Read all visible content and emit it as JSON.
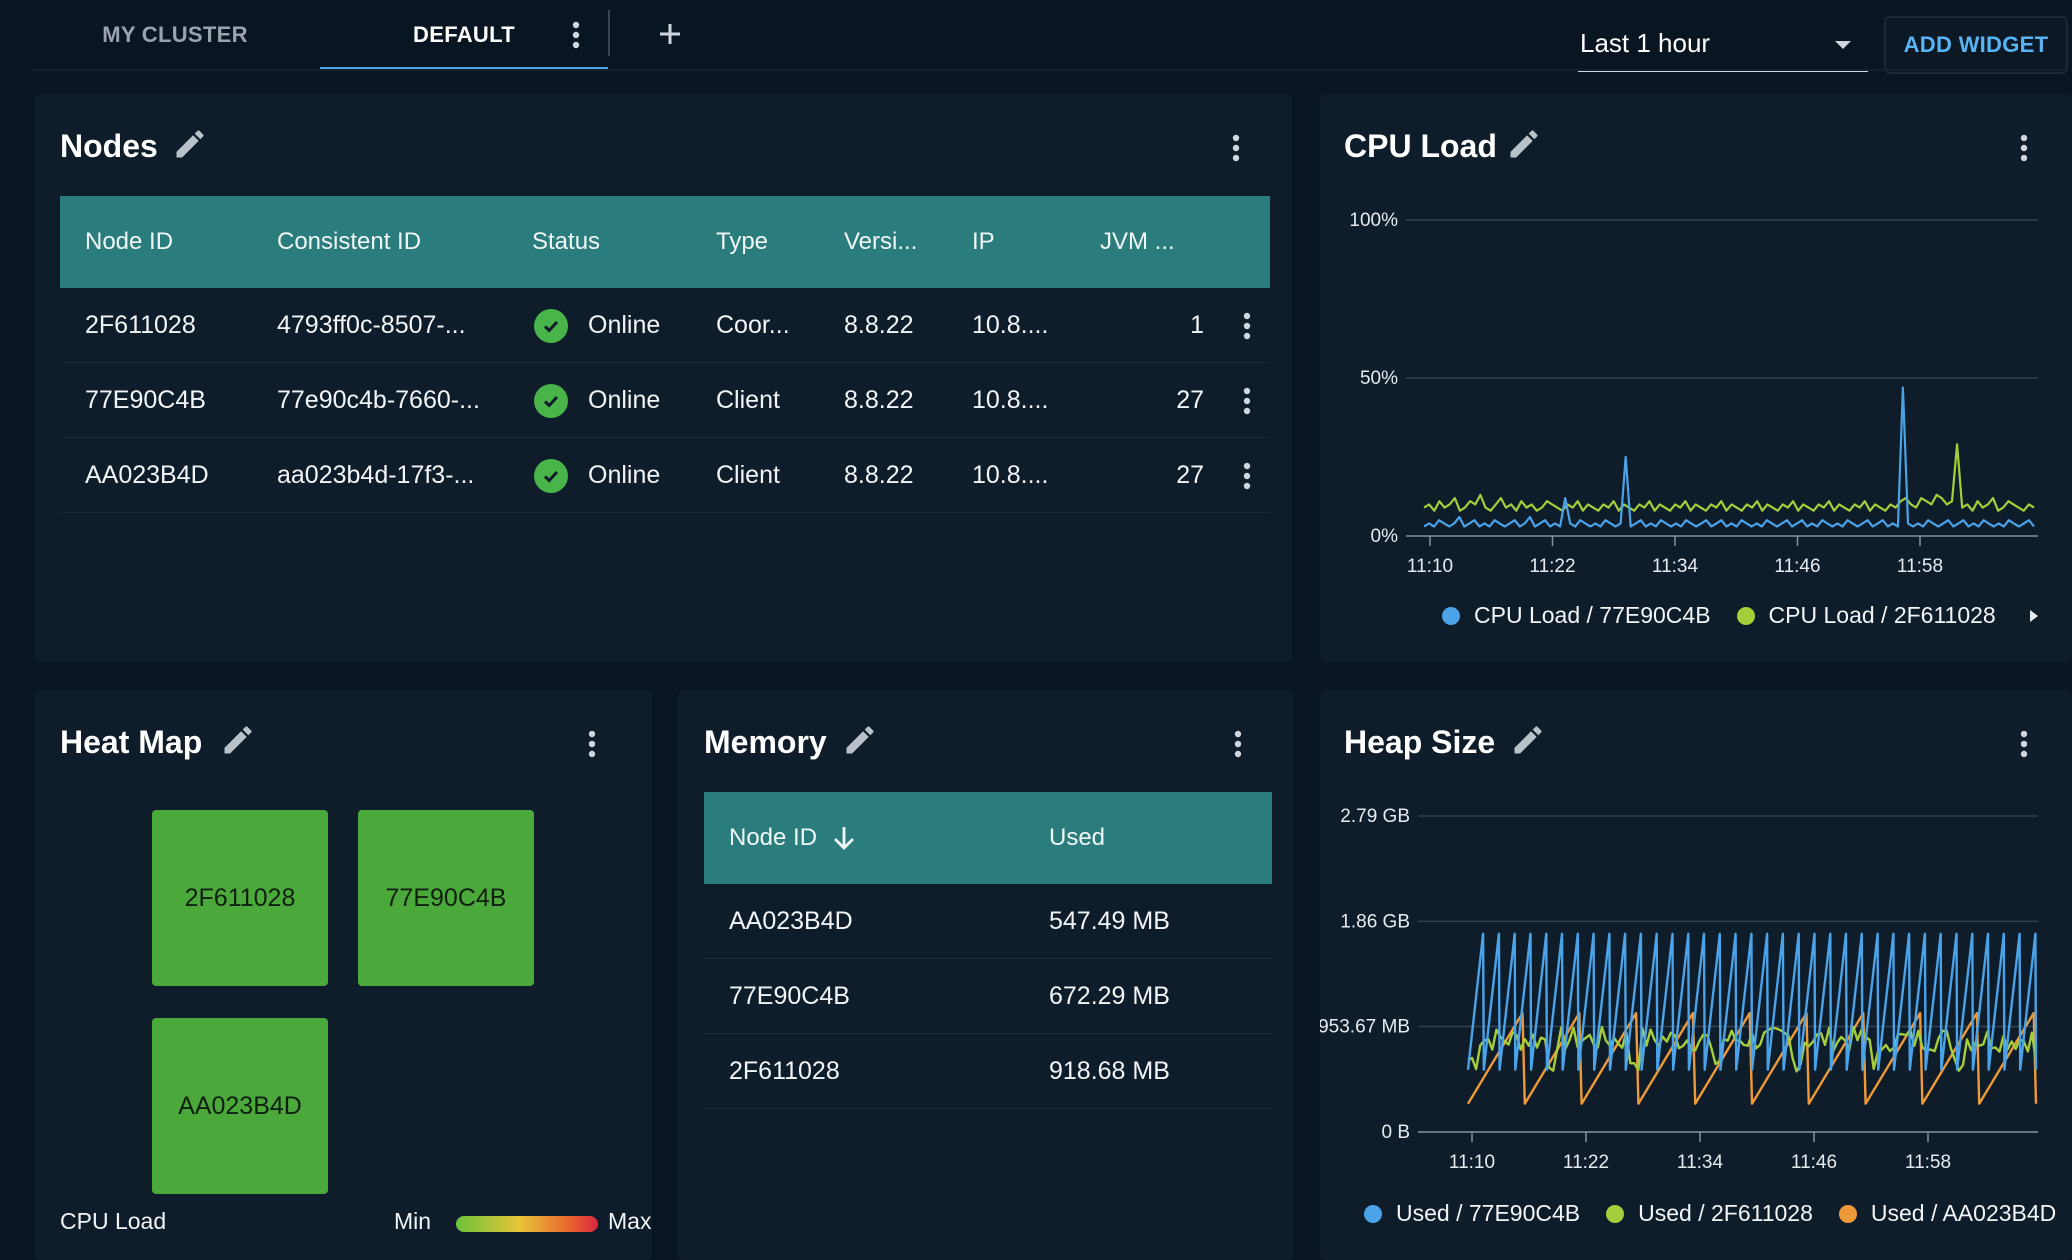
{
  "topbar": {
    "tabs": [
      {
        "label": "MY CLUSTER",
        "active": false
      },
      {
        "label": "DEFAULT",
        "active": true
      }
    ],
    "time_range": "Last 1 hour",
    "add_widget_label": "ADD WIDGET"
  },
  "nodes": {
    "title": "Nodes",
    "columns": [
      "Node ID",
      "Consistent ID",
      "Status",
      "Type",
      "Versi...",
      "IP",
      "JVM ..."
    ],
    "rows": [
      {
        "node_id": "2F611028",
        "consistent_id": "4793ff0c-8507-...",
        "status": "Online",
        "type": "Coor...",
        "version": "8.8.22",
        "ip": "10.8....",
        "jvm": "1"
      },
      {
        "node_id": "77E90C4B",
        "consistent_id": "77e90c4b-7660-...",
        "status": "Online",
        "type": "Client",
        "version": "8.8.22",
        "ip": "10.8....",
        "jvm": "27"
      },
      {
        "node_id": "AA023B4D",
        "consistent_id": "aa023b4d-17f3-...",
        "status": "Online",
        "type": "Client",
        "version": "8.8.22",
        "ip": "10.8....",
        "jvm": "27"
      }
    ]
  },
  "cpu": {
    "title": "CPU Load",
    "legend": [
      "CPU Load / 77E90C4B",
      "CPU Load / 2F611028"
    ]
  },
  "heatmap": {
    "title": "Heat Map",
    "cells": [
      "2F611028",
      "77E90C4B",
      "AA023B4D"
    ],
    "metric_label": "CPU Load",
    "min_label": "Min",
    "max_label": "Max"
  },
  "memory": {
    "title": "Memory",
    "columns": [
      "Node ID",
      "Used"
    ],
    "rows": [
      {
        "node_id": "AA023B4D",
        "used": "547.49 MB"
      },
      {
        "node_id": "77E90C4B",
        "used": "672.29 MB"
      },
      {
        "node_id": "2F611028",
        "used": "918.68 MB"
      }
    ]
  },
  "heap": {
    "title": "Heap Size",
    "legend": [
      "Used / 77E90C4B",
      "Used / 2F611028",
      "Used / AA023B4D"
    ]
  },
  "colors": {
    "blue": "#4aa3e8",
    "green": "#a4cf3a",
    "orange": "#ee9a3a",
    "teal_header": "#2b7d7d",
    "status_green": "#49b449"
  },
  "chart_data": [
    {
      "type": "line",
      "title": "CPU Load",
      "y_ticks": [
        "0%",
        "50%",
        "100%"
      ],
      "ylim": [
        0,
        100
      ],
      "x_ticks": [
        "11:10",
        "11:22",
        "11:34",
        "11:46",
        "11:58"
      ],
      "series": [
        {
          "name": "CPU Load / 77E90C4B",
          "color": "#4aa3e8",
          "values": [
            3,
            4,
            3,
            5,
            4,
            3,
            4,
            6,
            3,
            4,
            5,
            3,
            4,
            3,
            5,
            4,
            3,
            4,
            5,
            3,
            4,
            6,
            3,
            4,
            5,
            3,
            4,
            3,
            12,
            4,
            3,
            5,
            4,
            3,
            4,
            3,
            5,
            4,
            3,
            4,
            25,
            3,
            4,
            5,
            3,
            4,
            3,
            5,
            4,
            3,
            4,
            3,
            5,
            4,
            3,
            4,
            5,
            3,
            4,
            5,
            3,
            4,
            3,
            5,
            4,
            3,
            4,
            3,
            5,
            4,
            3,
            4,
            5,
            3,
            4,
            5,
            3,
            4,
            3,
            5,
            4,
            3,
            4,
            3,
            5,
            4,
            3,
            4,
            5,
            3,
            4,
            5,
            3,
            4,
            3,
            47,
            4,
            3,
            4,
            3,
            5,
            4,
            3,
            4,
            5,
            3,
            4,
            5,
            3,
            4,
            3,
            5,
            4,
            3,
            4,
            3,
            5,
            4,
            3,
            4,
            5,
            3
          ]
        },
        {
          "name": "CPU Load / 2F611028",
          "color": "#a4cf3a",
          "values": [
            9,
            10,
            8,
            11,
            9,
            10,
            12,
            8,
            9,
            11,
            10,
            13,
            9,
            8,
            10,
            12,
            9,
            10,
            8,
            11,
            9,
            10,
            8,
            9,
            11,
            10,
            9,
            8,
            10,
            9,
            11,
            8,
            10,
            9,
            8,
            10,
            9,
            11,
            8,
            10,
            9,
            8,
            10,
            9,
            11,
            8,
            10,
            9,
            8,
            10,
            9,
            11,
            8,
            10,
            9,
            8,
            10,
            9,
            11,
            8,
            10,
            9,
            8,
            10,
            9,
            11,
            8,
            10,
            9,
            8,
            10,
            9,
            11,
            8,
            10,
            9,
            8,
            10,
            9,
            11,
            8,
            10,
            9,
            8,
            10,
            9,
            11,
            8,
            10,
            9,
            8,
            10,
            9,
            11,
            12,
            10,
            9,
            12,
            11,
            10,
            13,
            12,
            10,
            11,
            29,
            9,
            10,
            8,
            11,
            9,
            10,
            12,
            8,
            9,
            11,
            10,
            9,
            8,
            10,
            9
          ]
        }
      ]
    },
    {
      "type": "line",
      "title": "Heap Size",
      "y_ticks": [
        "0 B",
        "953.67 MB",
        "1.86 GB",
        "2.79 GB"
      ],
      "ylim_gb": [
        0,
        2.79
      ],
      "x_ticks": [
        "11:10",
        "11:22",
        "11:34",
        "11:46",
        "11:58"
      ],
      "series": [
        {
          "name": "Used / 77E90C4B",
          "color": "#4aa3e8",
          "pattern": "sawtooth",
          "min_gb": 0.55,
          "max_gb": 1.75,
          "cycles": 36
        },
        {
          "name": "Used / 2F611028",
          "color": "#a4cf3a",
          "pattern": "noisy",
          "level_gb": 0.82
        },
        {
          "name": "Used / AA023B4D",
          "color": "#ee9a3a",
          "pattern": "sawtooth",
          "min_gb": 0.25,
          "max_gb": 1.05,
          "cycles": 10
        }
      ]
    }
  ]
}
